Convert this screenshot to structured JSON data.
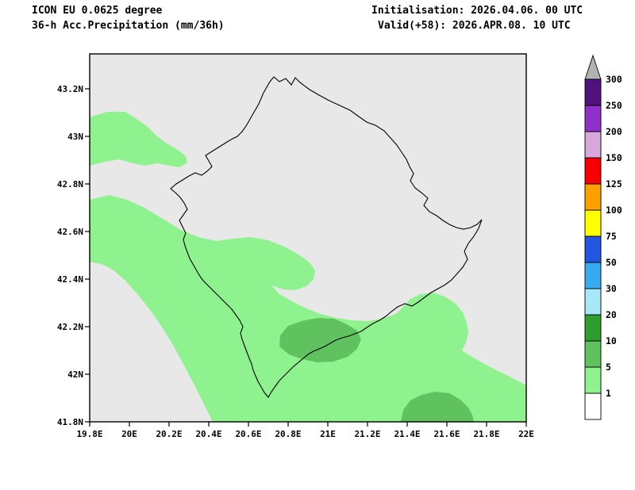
{
  "header": {
    "model_line": "ICON EU 0.0625 degree",
    "product_line": "36-h Acc.Precipitation (mm/36h)",
    "init_line": "Initialisation: 2026.04.06. 00 UTC",
    "valid_line": "Valid(+58): 2026.APR.08. 10 UTC"
  },
  "map": {
    "land_color": "#e8e8e8",
    "border_color": "#000000",
    "x_ticks": [
      "19.8E",
      "20E",
      "20.2E",
      "20.4E",
      "20.6E",
      "20.8E",
      "21E",
      "21.2E",
      "21.4E",
      "21.6E",
      "21.8E",
      "22E"
    ],
    "y_ticks": [
      "41.8N",
      "42N",
      "42.2N",
      "42.4N",
      "42.6N",
      "42.8N",
      "43N",
      "43.2N"
    ],
    "precip_regions": [
      {
        "range_mm": "1-5",
        "color_index": 1,
        "location": "broad area over west, southwest and south of domain"
      },
      {
        "range_mm": "5-10",
        "color_index": 2,
        "location": "patch near 20.9E 42.1N and patch near 21.5E 41.85N"
      }
    ]
  },
  "colorbar": {
    "unit": "mm/36h",
    "levels": [
      1,
      5,
      10,
      20,
      30,
      50,
      75,
      100,
      125,
      150,
      200,
      250,
      300
    ],
    "colors": [
      "#ffffff",
      "#8ef28e",
      "#5fc25f",
      "#2e9e2e",
      "#a8e8f8",
      "#38aaf0",
      "#2255e0",
      "#ffff00",
      "#ffa000",
      "#f80000",
      "#d8a8dc",
      "#9130c8",
      "#52127e"
    ],
    "over_color": "#b2b2b2"
  }
}
